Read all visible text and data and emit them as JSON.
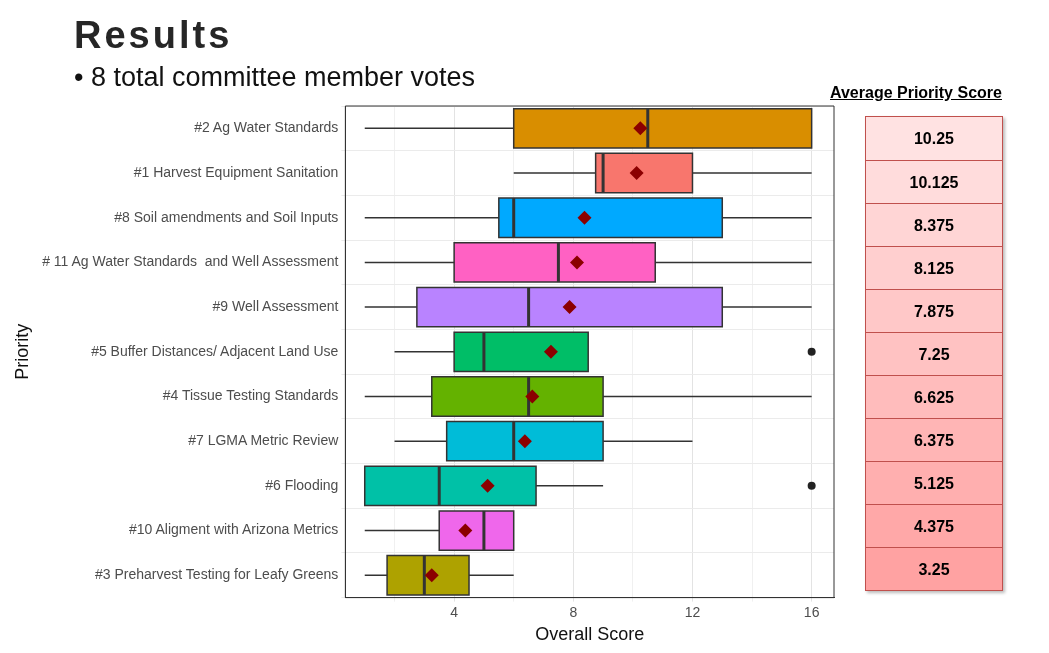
{
  "chart_data": {
    "type": "box",
    "title": "Results",
    "subtitle": "• 8 total committee member votes",
    "xlabel": "Overall Score",
    "ylabel": "Priority",
    "orientation": "horizontal",
    "categories": [
      "#2 Ag Water Standards",
      "#1 Harvest Equipment Sanitation",
      "#8 Soil amendments and Soil Inputs",
      "# 11 Ag Water Standards  and Well Assessment",
      "#9 Well Assessment",
      "#5 Buffer Distances/ Adjacent Land Use",
      "#4 Tissue Testing Standards",
      "#7 LGMA Metric Review",
      "#6 Flooding",
      "#10 Aligment with Arizona Metrics",
      "#3 Preharvest Testing for Leafy Greens"
    ],
    "colors": [
      "#d98e00",
      "#f8766d",
      "#00a9ff",
      "#ff61c3",
      "#b983ff",
      "#00be67",
      "#64b200",
      "#00bcd8",
      "#00c1a7",
      "#ef67eb",
      "#aea200"
    ],
    "boxes": [
      {
        "low": 1,
        "q1": 6,
        "median": 10.5,
        "q3": 16,
        "high": 16,
        "mean": 10.25
      },
      {
        "low": 6,
        "q1": 8.75,
        "median": 9,
        "q3": 12,
        "high": 16,
        "mean": 10.125
      },
      {
        "low": 1,
        "q1": 5.5,
        "median": 6,
        "q3": 13,
        "high": 16,
        "mean": 8.375
      },
      {
        "low": 1,
        "q1": 4,
        "median": 7.5,
        "q3": 10.75,
        "high": 16,
        "mean": 8.125
      },
      {
        "low": 1,
        "q1": 2.75,
        "median": 6.5,
        "q3": 13,
        "high": 16,
        "mean": 7.875
      },
      {
        "low": 2,
        "q1": 4,
        "median": 5,
        "q3": 8.5,
        "high": 8.5,
        "mean": 7.25,
        "outliers": [
          16
        ]
      },
      {
        "low": 1,
        "q1": 3.25,
        "median": 6.5,
        "q3": 9,
        "high": 16,
        "mean": 6.625
      },
      {
        "low": 2,
        "q1": 3.75,
        "median": 6,
        "q3": 9,
        "high": 12,
        "mean": 6.375
      },
      {
        "low": 1,
        "q1": 1,
        "median": 3.5,
        "q3": 6.75,
        "high": 9,
        "mean": 5.125,
        "outliers": [
          16
        ]
      },
      {
        "low": 1,
        "q1": 3.5,
        "median": 5,
        "q3": 6,
        "high": 6,
        "mean": 4.375
      },
      {
        "low": 1,
        "q1": 1.75,
        "median": 3,
        "q3": 4.5,
        "high": 6,
        "mean": 3.25
      }
    ],
    "marker": "diamond",
    "xlim": [
      0.35,
      16.75
    ],
    "xticks": [
      {
        "value": 2,
        "label": null
      },
      4,
      {
        "value": 6,
        "label": null
      },
      8,
      {
        "value": 10,
        "label": null
      },
      12,
      {
        "value": 14,
        "label": null
      },
      16
    ],
    "grid": true,
    "legend": false,
    "value_labels": [
      "10.25",
      "10.125",
      "8.375",
      "8.125",
      "7.875",
      "7.25",
      "6.625",
      "6.375",
      "5.125",
      "4.375",
      "3.25"
    ],
    "annotations": [
      "Average Priority Score"
    ]
  }
}
